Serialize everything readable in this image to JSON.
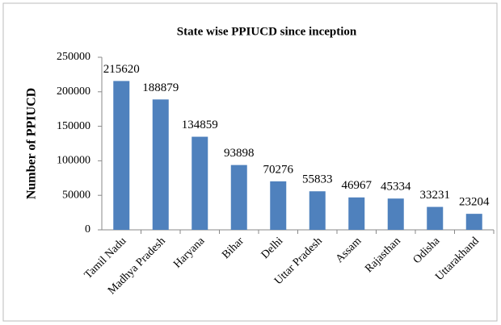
{
  "chart_data": {
    "type": "bar",
    "title": "State wise PPIUCD since inception",
    "y_label": "Number of PPIUCD",
    "categories": [
      "Tamil Nadu",
      "Madhya Pradesh",
      "Haryana",
      "Bihar",
      "Delhi",
      "Uttar Pradesh",
      "Assam",
      "Rajasthan",
      "Odisha",
      "Uttarakhand"
    ],
    "values": [
      215620,
      188879,
      134859,
      93898,
      70276,
      55833,
      46967,
      45334,
      33231,
      23204
    ],
    "color": "#4f81bd",
    "ylim": [
      0,
      250000
    ],
    "yticks": [
      0,
      50000,
      100000,
      150000,
      200000,
      250000
    ],
    "grid": false
  }
}
